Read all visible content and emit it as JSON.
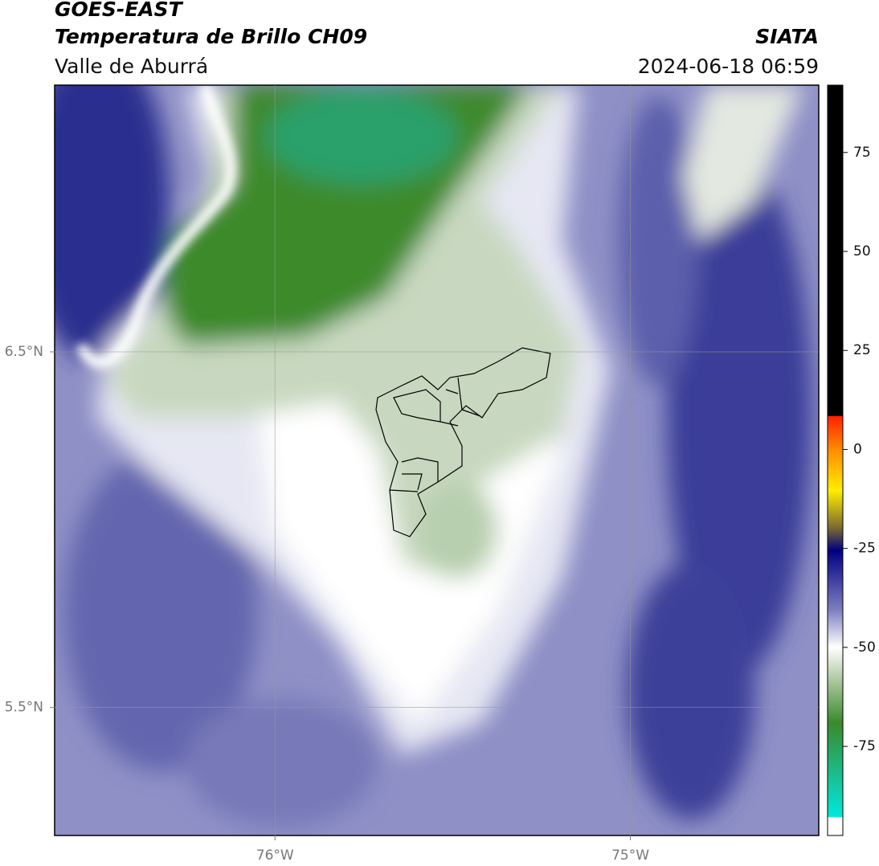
{
  "header": {
    "title": "GOES-EAST",
    "subtitle": "Temperatura de Brillo CH09",
    "region": "Valle de Aburrá",
    "source": "SIATA",
    "timestamp": "2024-06-18 06:59"
  },
  "map": {
    "xlim": [
      -76.62,
      -74.47
    ],
    "ylim": [
      5.14,
      7.25
    ],
    "xticks": [
      {
        "value": -76,
        "label": "76°W"
      },
      {
        "value": -75,
        "label": "75°W"
      }
    ],
    "yticks": [
      {
        "value": 6.5,
        "label": "6.5°N"
      },
      {
        "value": 5.5,
        "label": "5.5°N"
      }
    ],
    "grid": true
  },
  "colorbar": {
    "lim": [
      -97.5,
      92
    ],
    "ticks": [
      75,
      50,
      25,
      0,
      -25,
      -50,
      -75
    ]
  }
}
